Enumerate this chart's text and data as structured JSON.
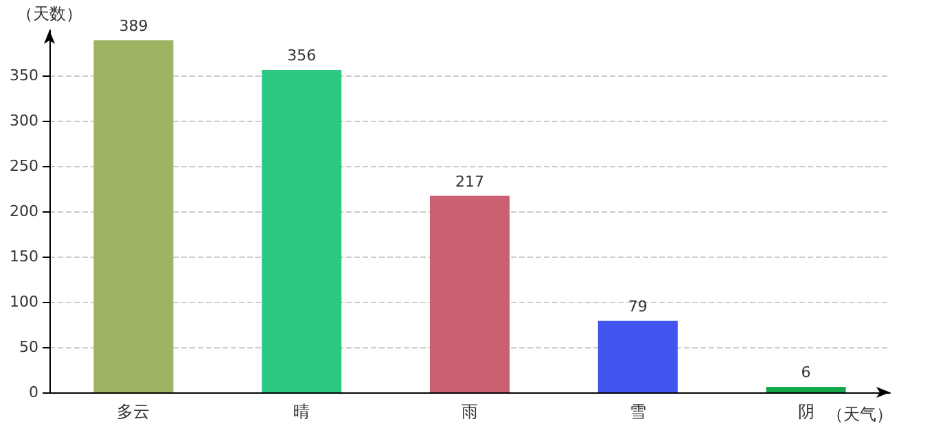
{
  "chart_data": {
    "type": "bar",
    "xlabel": "（天气）",
    "ylabel": "（天数）",
    "categories": [
      "多云",
      "晴",
      "雨",
      "雪",
      "阴"
    ],
    "values": [
      389,
      356,
      217,
      79,
      6
    ],
    "colors": [
      "#9fb365",
      "#2ec882",
      "#cb6073",
      "#4355ef",
      "#12a84a"
    ],
    "data_labels": true,
    "ylim": [
      0,
      400
    ],
    "yticks": [
      0,
      50,
      100,
      150,
      200,
      250,
      300,
      350
    ],
    "grid": "y"
  }
}
